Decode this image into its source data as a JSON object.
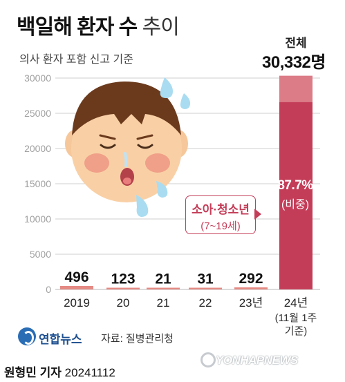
{
  "header": {
    "title_bold": "백일해 환자 수",
    "title_light": "추이",
    "subtitle": "의사 환자 포함 신고 기준"
  },
  "total": {
    "label": "전체",
    "value": "30,332명"
  },
  "callout": {
    "line1": "소아·청소년",
    "line2": "(7~19세)"
  },
  "share": {
    "value": "87.7%",
    "label": "(비중)"
  },
  "footer": {
    "brand": "연합뉴스",
    "source": "자료: 질병관리청",
    "reporter": "원형민 기자",
    "date": "20241112",
    "watermark": "YONHAPNEWS"
  },
  "colors": {
    "bar": "#c43d58",
    "bar_light": "#dc7c86",
    "bar_small": "#e58a84",
    "grid": "#cfcfcf",
    "axis_text": "#a0a0a0"
  },
  "chart_data": {
    "type": "bar",
    "categories": [
      "2019",
      "20",
      "21",
      "22",
      "23년",
      "24년"
    ],
    "category_sublabels": [
      "",
      "",
      "",
      "",
      "",
      "(11월 1주\n기준)"
    ],
    "values": [
      496,
      123,
      21,
      31,
      292,
      30332
    ],
    "value_labels": [
      "496",
      "123",
      "21",
      "31",
      "292",
      ""
    ],
    "stacked_2024": {
      "children_youth": 26601,
      "others": 3731,
      "children_share_pct": 87.7
    },
    "ylim": [
      0,
      30000
    ],
    "yticks": [
      0,
      5000,
      10000,
      15000,
      20000,
      25000,
      30000
    ],
    "ytick_labels": [
      "0",
      "5000",
      "10000",
      "15000",
      "20000",
      "25000",
      "30000"
    ],
    "grid": true
  }
}
